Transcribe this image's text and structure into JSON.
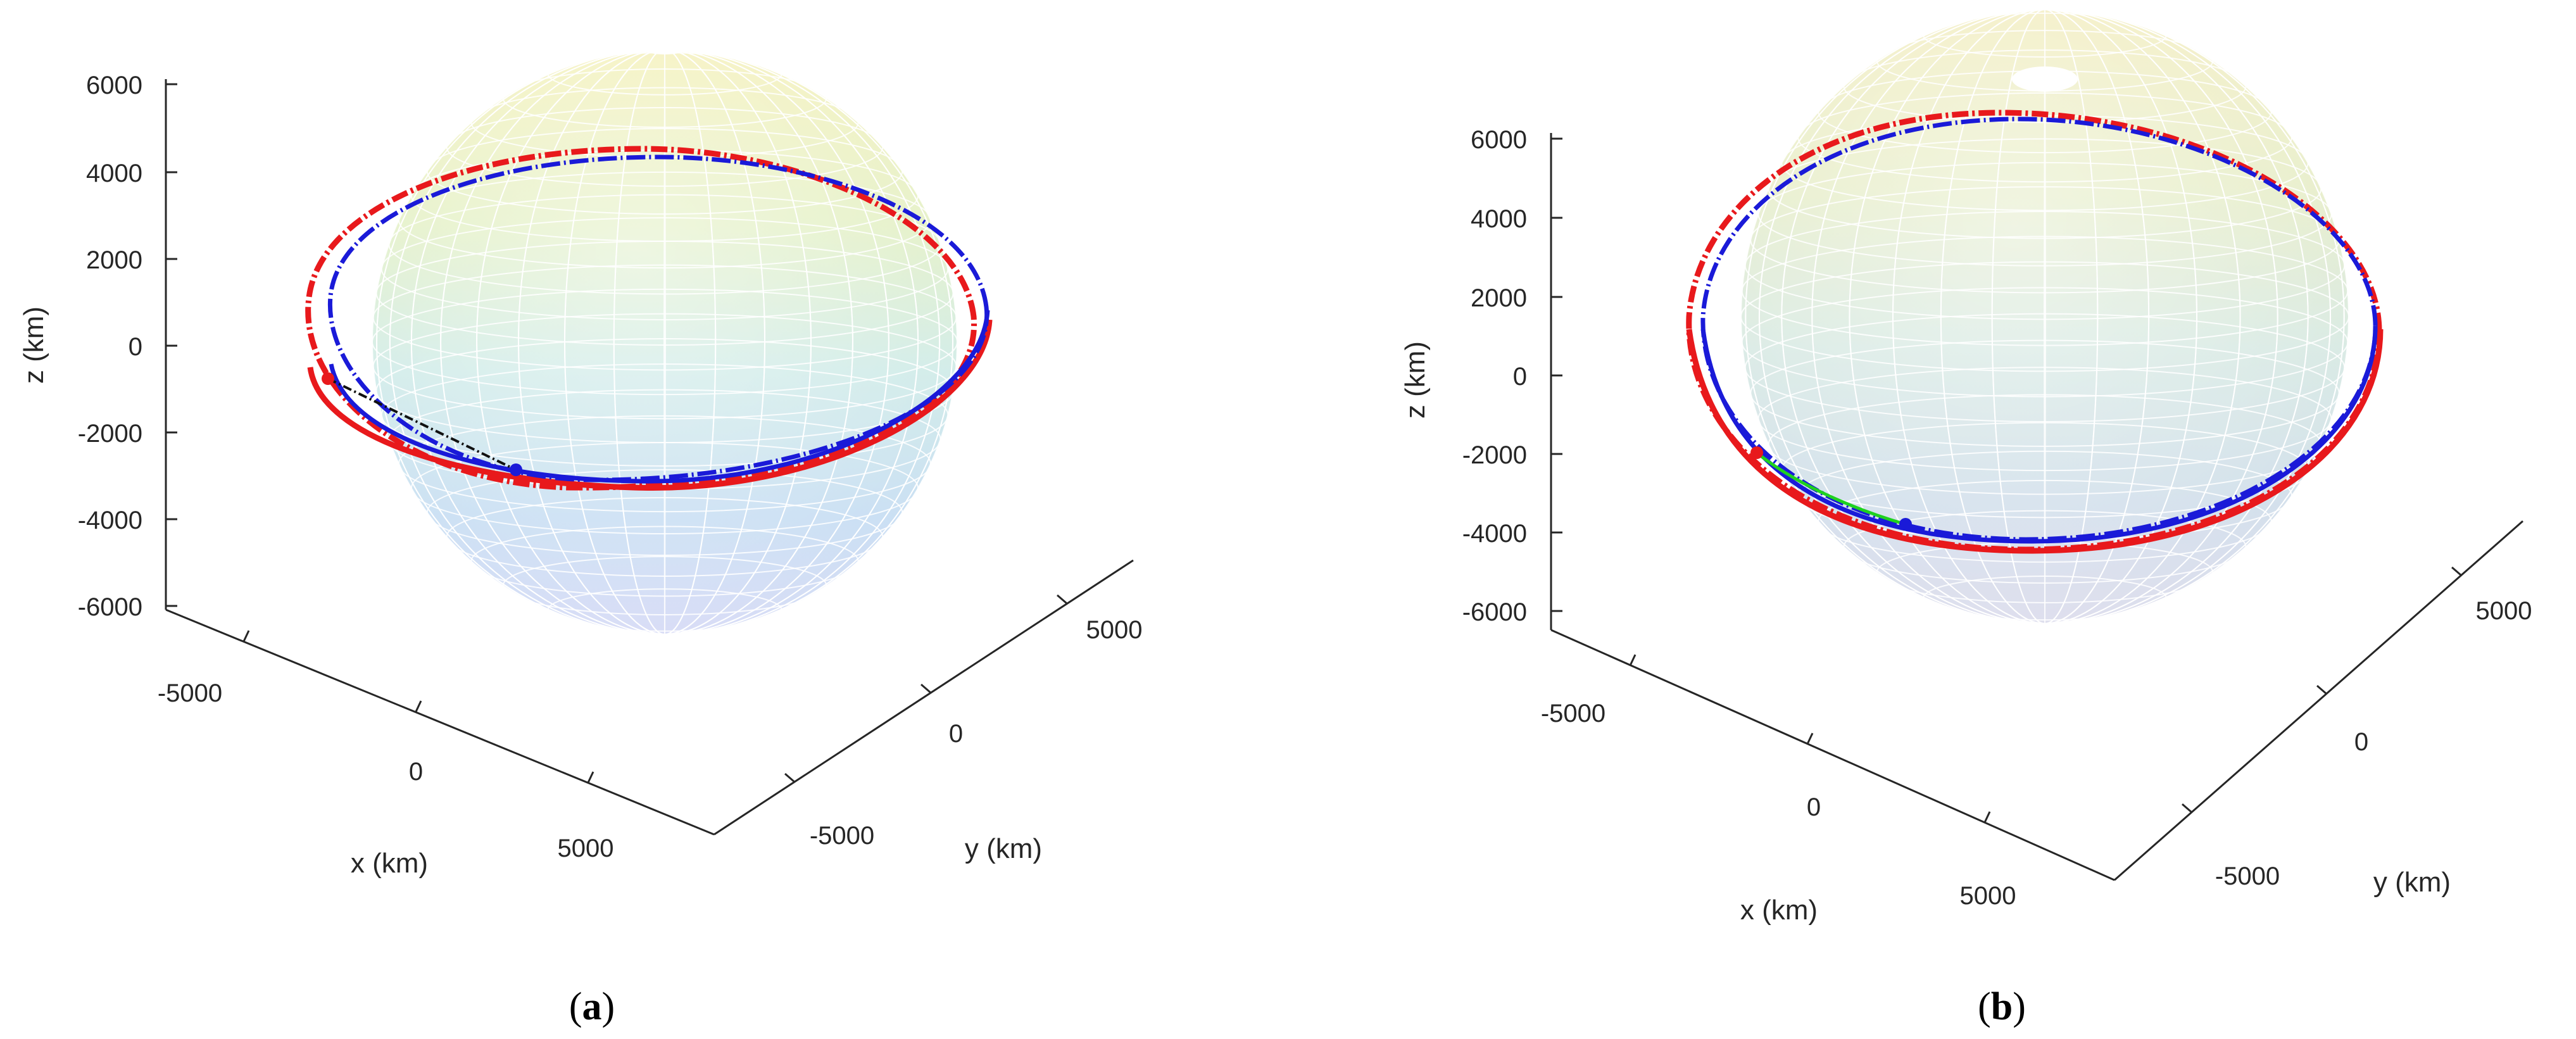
{
  "figure": {
    "colors": {
      "orbit_outer": "#e8191c",
      "orbit_inner": "#1a1ad8",
      "transfer_a": "#111111",
      "transfer_b": "#1fd11f",
      "axis": "#262626",
      "mesh_line": "#ffffff"
    }
  },
  "chart_data": [
    {
      "type": "3d-line",
      "panel": "a",
      "caption": "(a)",
      "caption_open": "(",
      "caption_letter": "a",
      "caption_close": ")",
      "xlabel": "x (km)",
      "ylabel": "y (km)",
      "zlabel": "z (km)",
      "zticks": [
        "6000",
        "4000",
        "2000",
        "0",
        "-2000",
        "-4000",
        "-6000"
      ],
      "xticks": [
        "-5000",
        "0",
        "5000"
      ],
      "yticks": [
        "-5000",
        "0",
        "5000"
      ],
      "zlim": [
        -6500,
        6500
      ],
      "sphere": {
        "name": "central body surface",
        "radius_km": 6378
      },
      "series": [
        {
          "name": "outer orbit",
          "color": "#e8191c"
        },
        {
          "name": "inner orbit",
          "color": "#1a1ad8"
        },
        {
          "name": "transfer path",
          "color": "#111111"
        }
      ],
      "markers": [
        {
          "name": "start point",
          "color": "#e8191c"
        },
        {
          "name": "end point",
          "color": "#1a1ad8"
        }
      ]
    },
    {
      "type": "3d-line",
      "panel": "b",
      "caption": "(b)",
      "caption_open": "(",
      "caption_letter": "b",
      "caption_close": ")",
      "xlabel": "x (km)",
      "ylabel": "y (km)",
      "zlabel": "z (km)",
      "zticks": [
        "6000",
        "4000",
        "2000",
        "0",
        "-2000",
        "-4000",
        "-6000"
      ],
      "xticks": [
        "-5000",
        "0",
        "5000"
      ],
      "yticks": [
        "-5000",
        "0",
        "5000"
      ],
      "zlim": [
        -6500,
        6500
      ],
      "sphere": {
        "name": "central body surface",
        "radius_km": 6378
      },
      "series": [
        {
          "name": "outer orbit",
          "color": "#e8191c"
        },
        {
          "name": "inner orbit",
          "color": "#1a1ad8"
        },
        {
          "name": "transfer path",
          "color": "#1fd11f"
        }
      ],
      "markers": [
        {
          "name": "start point",
          "color": "#e8191c"
        },
        {
          "name": "end point",
          "color": "#1a1ad8"
        }
      ]
    }
  ]
}
